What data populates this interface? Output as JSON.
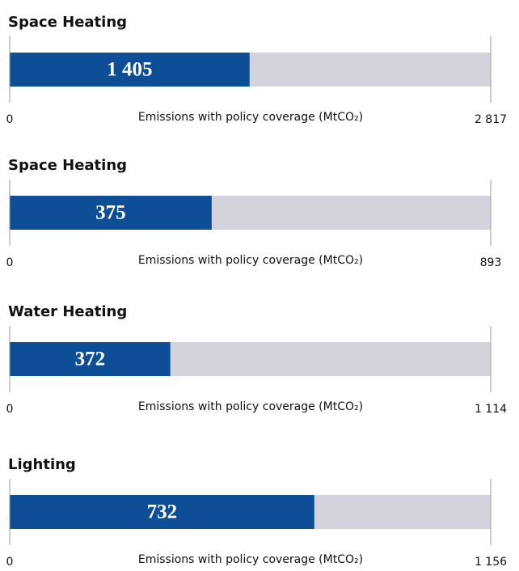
{
  "chart_data": [
    {
      "type": "bar",
      "title": "Space Heating",
      "values": [
        1405
      ],
      "value_labels": [
        "1 405"
      ],
      "color": "#0e4e96",
      "track_color": "#d3d3de",
      "xlim": [
        0,
        2817
      ],
      "xticks": [
        0,
        {
          "value": 2817,
          "label": "2 817"
        }
      ],
      "xlabel": "Emissions with policy coverage (MtCO₂)"
    },
    {
      "type": "bar",
      "title": "Space Heating",
      "values": [
        375
      ],
      "value_labels": [
        "375"
      ],
      "color": "#0e4e96",
      "track_color": "#d3d3de",
      "xlim": [
        0,
        893
      ],
      "xticks": [
        0,
        893
      ],
      "xlabel": "Emissions with policy coverage (MtCO₂)"
    },
    {
      "type": "bar",
      "title": "Water Heating",
      "values": [
        372
      ],
      "value_labels": [
        "372"
      ],
      "color": "#0e4e96",
      "track_color": "#d3d3de",
      "xlim": [
        0,
        1114
      ],
      "xticks": [
        0,
        {
          "value": 1114,
          "label": "1 114"
        }
      ],
      "xlabel": "Emissions with policy coverage (MtCO₂)"
    },
    {
      "type": "bar",
      "title": "Lighting",
      "values": [
        732
      ],
      "value_labels": [
        "732"
      ],
      "color": "#0e4e96",
      "track_color": "#d3d3de",
      "xlim": [
        0,
        1156
      ],
      "xticks": [
        0,
        {
          "value": 1156,
          "label": "1 156"
        }
      ],
      "xlabel": "Emissions with policy coverage (MtCO₂)"
    }
  ]
}
